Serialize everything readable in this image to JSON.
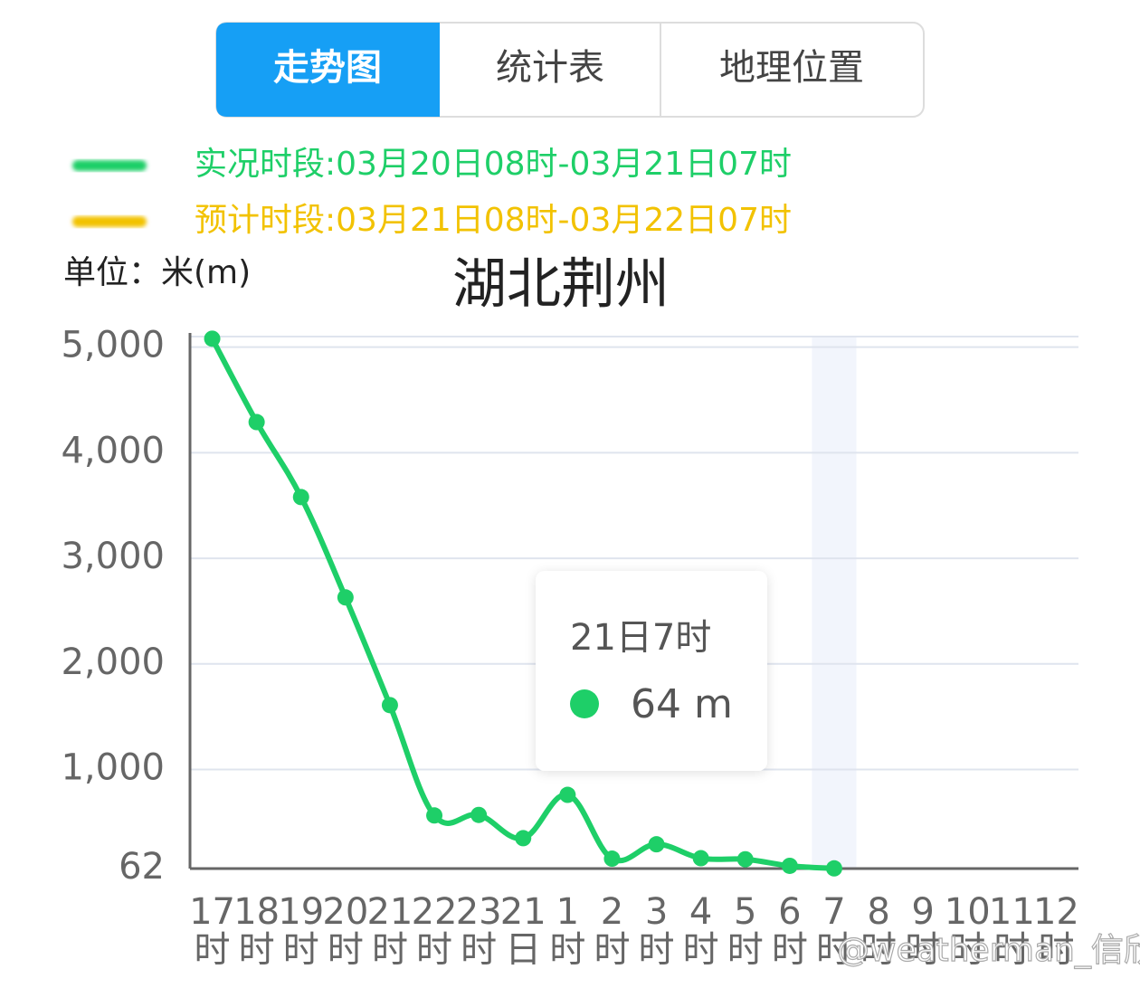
{
  "tabs": [
    "走势图",
    "统计表",
    "地理位置"
  ],
  "chart_data": {
    "type": "line",
    "title": "湖北荆州",
    "unit_label": "单位：米(m)",
    "categories": [
      "17时",
      "18时",
      "19时",
      "20时",
      "21时",
      "22时",
      "23时",
      "21日",
      "1时",
      "2时",
      "3时",
      "4时",
      "5时",
      "6时",
      "7时",
      "8时",
      "9时",
      "10时",
      "11时",
      "12时"
    ],
    "series": [
      {
        "name": "实况时段:03月20日08时-03月21日07时",
        "color": "#1ecf68",
        "values": [
          5080,
          4290,
          3580,
          2630,
          1610,
          565,
          570,
          350,
          760,
          156,
          292,
          160,
          150,
          88,
          64,
          null,
          null,
          null,
          null,
          null
        ]
      },
      {
        "name": "预计时段:03月21日08时-03月22日07时",
        "color": "#f2c200",
        "values": [
          null,
          null,
          null,
          null,
          null,
          null,
          null,
          null,
          null,
          null,
          null,
          null,
          null,
          null,
          null,
          null,
          null,
          null,
          null,
          null
        ]
      }
    ],
    "ylim": [
      62,
      5100
    ],
    "yticks": [
      62,
      {
        "value": 1000,
        "label": "1,000"
      },
      {
        "value": 2000,
        "label": "2,000"
      },
      {
        "value": 3000,
        "label": "3,000"
      },
      {
        "value": 4000,
        "label": "4,000"
      },
      {
        "value": 5000,
        "label": "5,000"
      }
    ],
    "grid": true,
    "tooltip": {
      "title": "21日7时",
      "text": "64 m"
    }
  },
  "watermark": "@weatherman_信欣"
}
